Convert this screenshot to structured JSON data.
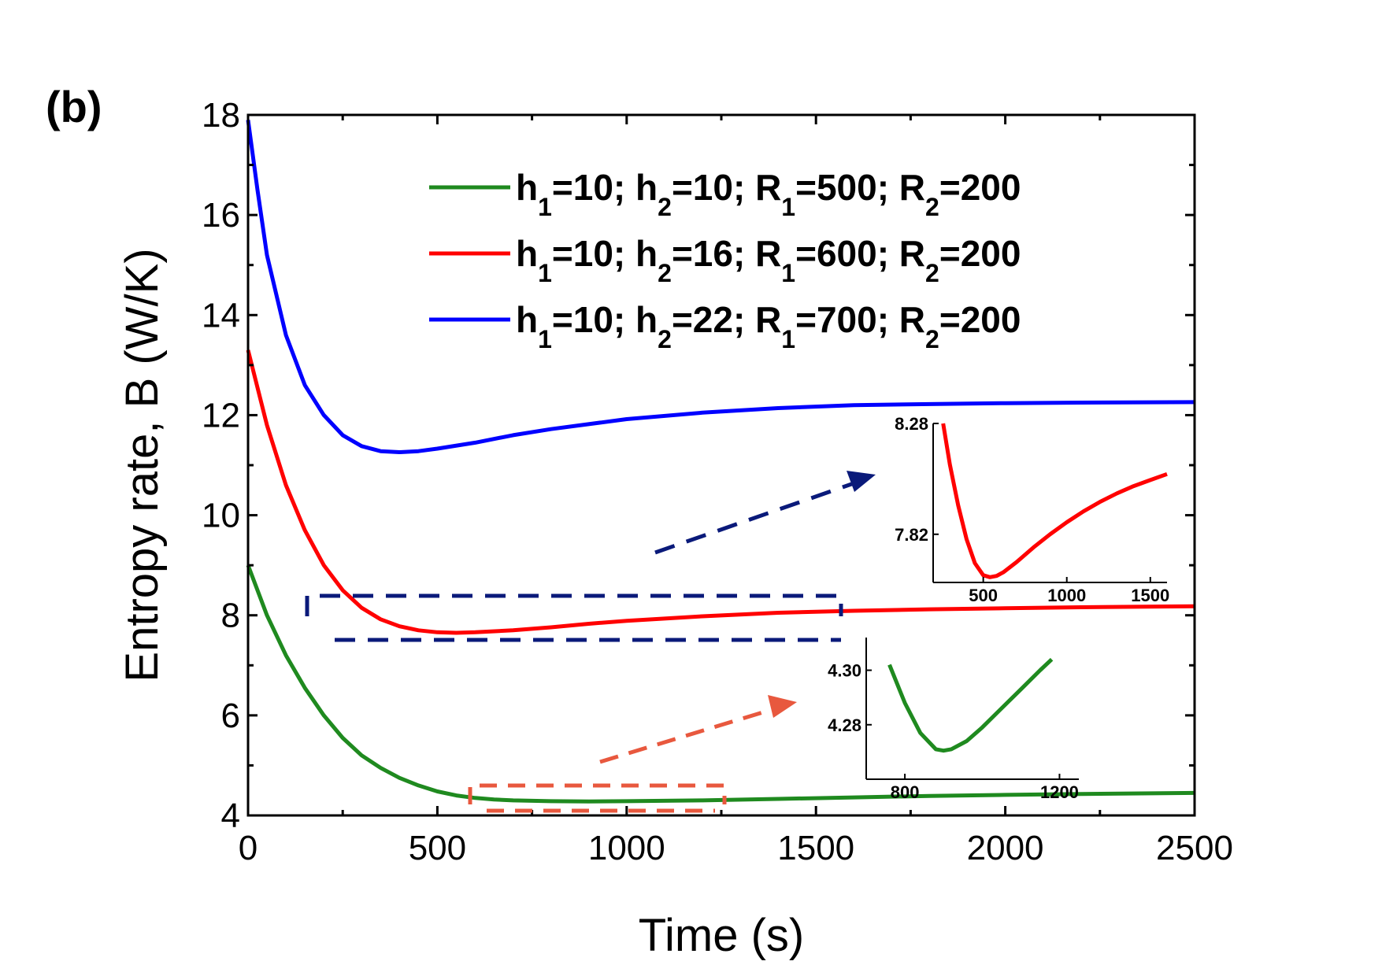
{
  "chart_data": {
    "type": "line",
    "panel_label": "(b)",
    "xlabel": "Time (s)",
    "ylabel": "Entropy rate, B (W/K)",
    "xlim": [
      0,
      2500
    ],
    "ylim": [
      4,
      18
    ],
    "x_ticks": [
      "0",
      "500",
      "1000",
      "1500",
      "2000",
      "2500"
    ],
    "y_ticks": [
      "4",
      "6",
      "8",
      "10",
      "12",
      "14",
      "16",
      "18"
    ],
    "legend_position": "top-right",
    "series": [
      {
        "name": "h1=10; h2=10; R1=500; R2=200",
        "legend_parts": [
          "h",
          "1",
          "=10; h",
          "2",
          "=10; R",
          "1",
          "=500; R",
          "2",
          "=200"
        ],
        "color": "#1f8a1f",
        "x": [
          0,
          50,
          100,
          150,
          200,
          250,
          300,
          350,
          400,
          450,
          500,
          550,
          600,
          650,
          700,
          800,
          900,
          1000,
          1200,
          1400,
          1600,
          1800,
          2000,
          2200,
          2500
        ],
        "y": [
          9.0,
          8.0,
          7.2,
          6.55,
          6.0,
          5.55,
          5.2,
          4.95,
          4.75,
          4.6,
          4.48,
          4.4,
          4.35,
          4.32,
          4.3,
          4.285,
          4.28,
          4.285,
          4.3,
          4.33,
          4.36,
          4.39,
          4.41,
          4.43,
          4.45
        ]
      },
      {
        "name": "h1=10; h2=16; R1=600; R2=200",
        "legend_parts": [
          "h",
          "1",
          "=10; h",
          "2",
          "=16; R",
          "1",
          "=600; R",
          "2",
          "=200"
        ],
        "color": "#ff0000",
        "x": [
          0,
          50,
          100,
          150,
          200,
          250,
          300,
          350,
          400,
          450,
          500,
          550,
          600,
          700,
          800,
          900,
          1000,
          1200,
          1400,
          1600,
          1800,
          2000,
          2200,
          2500
        ],
        "y": [
          13.3,
          11.8,
          10.6,
          9.7,
          9.0,
          8.5,
          8.15,
          7.92,
          7.78,
          7.7,
          7.66,
          7.65,
          7.66,
          7.7,
          7.76,
          7.83,
          7.89,
          7.98,
          8.05,
          8.09,
          8.12,
          8.14,
          8.16,
          8.18
        ]
      },
      {
        "name": "h1=10; h2=22; R1=700; R2=200",
        "legend_parts": [
          "h",
          "1",
          "=10; h",
          "2",
          "=22; R",
          "1",
          "=700; R",
          "2",
          "=200"
        ],
        "color": "#0000ff",
        "x": [
          0,
          25,
          50,
          100,
          150,
          200,
          250,
          300,
          350,
          400,
          450,
          500,
          600,
          700,
          800,
          1000,
          1200,
          1400,
          1600,
          1800,
          2000,
          2200,
          2500
        ],
        "y": [
          17.9,
          16.5,
          15.2,
          13.6,
          12.6,
          12.0,
          11.6,
          11.38,
          11.28,
          11.26,
          11.28,
          11.33,
          11.45,
          11.6,
          11.72,
          11.92,
          12.05,
          12.14,
          12.2,
          12.22,
          12.24,
          12.25,
          12.26
        ]
      }
    ],
    "insets": [
      {
        "series_color": "#ff0000",
        "x_ticks": [
          "500",
          "1000",
          "1500"
        ],
        "y_ticks": [
          "8.28",
          "7.82"
        ],
        "xlim": [
          200,
          1600
        ],
        "ylim": [
          7.62,
          8.28
        ],
        "x": [
          260,
          300,
          350,
          400,
          450,
          500,
          540,
          580,
          620,
          700,
          800,
          900,
          1000,
          1100,
          1200,
          1300,
          1400,
          1500,
          1600
        ],
        "y": [
          8.28,
          8.11,
          7.94,
          7.8,
          7.7,
          7.65,
          7.642,
          7.647,
          7.662,
          7.705,
          7.765,
          7.82,
          7.87,
          7.915,
          7.955,
          7.99,
          8.02,
          8.045,
          8.07
        ]
      },
      {
        "series_color": "#1f8a1f",
        "x_ticks": [
          "800",
          "1200"
        ],
        "y_ticks": [
          "4.30",
          "4.28"
        ],
        "xlim": [
          700,
          1250
        ],
        "ylim": [
          4.26,
          4.312
        ],
        "x": [
          760,
          800,
          840,
          880,
          900,
          920,
          960,
          1000,
          1050,
          1100,
          1150,
          1180
        ],
        "y": [
          4.302,
          4.288,
          4.277,
          4.271,
          4.2705,
          4.271,
          4.274,
          4.279,
          4.286,
          4.293,
          4.3,
          4.304
        ]
      }
    ]
  }
}
